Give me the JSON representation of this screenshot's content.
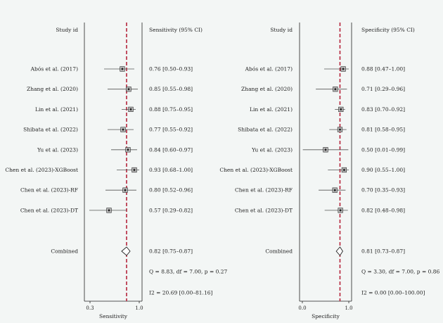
{
  "chart_data": [
    {
      "type": "forest",
      "column_headers": {
        "study": "Study id",
        "estimate": "Sensitivity (95% CI)"
      },
      "xlabel": "Sensitivity",
      "xticks": [
        0.3,
        1.0
      ],
      "xticklabels": [
        "0.3",
        "1.0"
      ],
      "xlim": [
        0.22,
        1.04
      ],
      "reference_line": 0.82,
      "studies": [
        {
          "label": "Abós et al. (2017)",
          "estimate": 0.76,
          "ci": [
            0.5,
            0.93
          ],
          "text": "0.76 [0.50–0.93]"
        },
        {
          "label": "Zhang et al. (2020)",
          "estimate": 0.85,
          "ci": [
            0.55,
            0.98
          ],
          "text": "0.85 [0.55–0.98]"
        },
        {
          "label": "Lin et al. (2021)",
          "estimate": 0.88,
          "ci": [
            0.75,
            0.95
          ],
          "text": "0.88 [0.75–0.95]"
        },
        {
          "label": "Shibata et al. (2022)",
          "estimate": 0.77,
          "ci": [
            0.55,
            0.92
          ],
          "text": "0.77 [0.55–0.92]"
        },
        {
          "label": "Yu et al. (2023)",
          "estimate": 0.84,
          "ci": [
            0.6,
            0.97
          ],
          "text": "0.84 [0.60–0.97]"
        },
        {
          "label": "Chen et al. (2023)-XGBoost",
          "estimate": 0.93,
          "ci": [
            0.68,
            1.0
          ],
          "text": "0.93 [0.68–1.00]"
        },
        {
          "label": "Chen et al. (2023)-RF",
          "estimate": 0.8,
          "ci": [
            0.52,
            0.96
          ],
          "text": "0.80 [0.52–0.96]"
        },
        {
          "label": "Chen et al. (2023)-DT",
          "estimate": 0.57,
          "ci": [
            0.29,
            0.82
          ],
          "text": "0.57 [0.29–0.82]"
        }
      ],
      "combined": {
        "label": "Combined",
        "estimate": 0.82,
        "ci": [
          0.75,
          0.87
        ],
        "text": "0.82 [0.75–0.87]"
      },
      "stats": {
        "q_text": "Q = 8.83, df = 7.00, p = 0.27",
        "i2_text": "I2 = 20.69 [0.00–81.16]"
      }
    },
    {
      "type": "forest",
      "column_headers": {
        "study": "Study id",
        "estimate": "Specificity (95% CI)"
      },
      "xlabel": "Specificity",
      "xticks": [
        0.0,
        1.0
      ],
      "xticklabels": [
        "0.0",
        "1.0"
      ],
      "xlim": [
        -0.06,
        1.06
      ],
      "reference_line": 0.81,
      "studies": [
        {
          "label": "Abós et al. (2017)",
          "estimate": 0.88,
          "ci": [
            0.47,
            1.0
          ],
          "text": "0.88 [0.47–1.00]"
        },
        {
          "label": "Zhang et al. (2020)",
          "estimate": 0.71,
          "ci": [
            0.29,
            0.96
          ],
          "text": "0.71 [0.29–0.96]"
        },
        {
          "label": "Lin et al. (2021)",
          "estimate": 0.83,
          "ci": [
            0.7,
            0.92
          ],
          "text": "0.83 [0.70–0.92]"
        },
        {
          "label": "Shibata et al. (2022)",
          "estimate": 0.81,
          "ci": [
            0.58,
            0.95
          ],
          "text": "0.81 [0.58–0.95]"
        },
        {
          "label": "Yu et al. (2023)",
          "estimate": 0.5,
          "ci": [
            0.01,
            0.99
          ],
          "text": "0.50 [0.01–0.99]"
        },
        {
          "label": "Chen et al. (2023)-XGBoost",
          "estimate": 0.9,
          "ci": [
            0.55,
            1.0
          ],
          "text": "0.90 [0.55–1.00]"
        },
        {
          "label": "Chen et al. (2023)-RF",
          "estimate": 0.7,
          "ci": [
            0.35,
            0.93
          ],
          "text": "0.70 [0.35–0.93]"
        },
        {
          "label": "Chen et al. (2023)-DT",
          "estimate": 0.82,
          "ci": [
            0.48,
            0.98
          ],
          "text": "0.82 [0.48–0.98]"
        }
      ],
      "combined": {
        "label": "Combined",
        "estimate": 0.81,
        "ci": [
          0.73,
          0.87
        ],
        "text": "0.81 [0.73–0.87]"
      },
      "stats": {
        "q_text": "Q = 3.30, df = 7.00, p = 0.86",
        "i2_text": "I2 = 0.00 [0.00–100.00]"
      }
    }
  ],
  "colors": {
    "reference_line": "#b5243b",
    "axis": "#222222",
    "marker": "#222222",
    "ci": "#555555"
  }
}
